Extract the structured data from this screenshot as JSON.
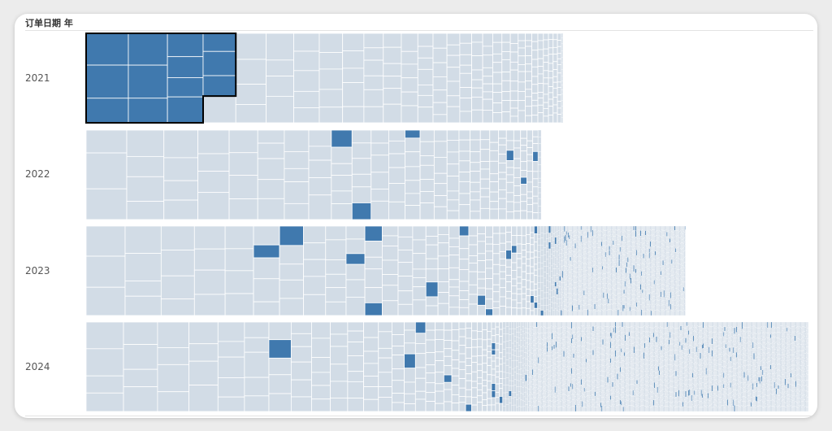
{
  "header": {
    "dimension_label": "订单日期 年"
  },
  "colors": {
    "base": "#d2dce6",
    "highlight": "#4079ae",
    "cell_border": "#ffffff",
    "selection_outline": "#000000",
    "background": "#ffffff"
  },
  "chart_data": {
    "type": "treemap",
    "title": "",
    "rows": [
      {
        "year": "2021",
        "relative_total": 0.66,
        "selected": true,
        "highlighted_share": 0.25
      },
      {
        "year": "2022",
        "relative_total": 0.63,
        "selected": false,
        "highlighted_share": 0.03
      },
      {
        "year": "2023",
        "relative_total": 0.83,
        "selected": false,
        "highlighted_share": 0.04
      },
      {
        "year": "2024",
        "relative_total": 1.0,
        "selected": false,
        "highlighted_share": 0.03
      }
    ]
  }
}
